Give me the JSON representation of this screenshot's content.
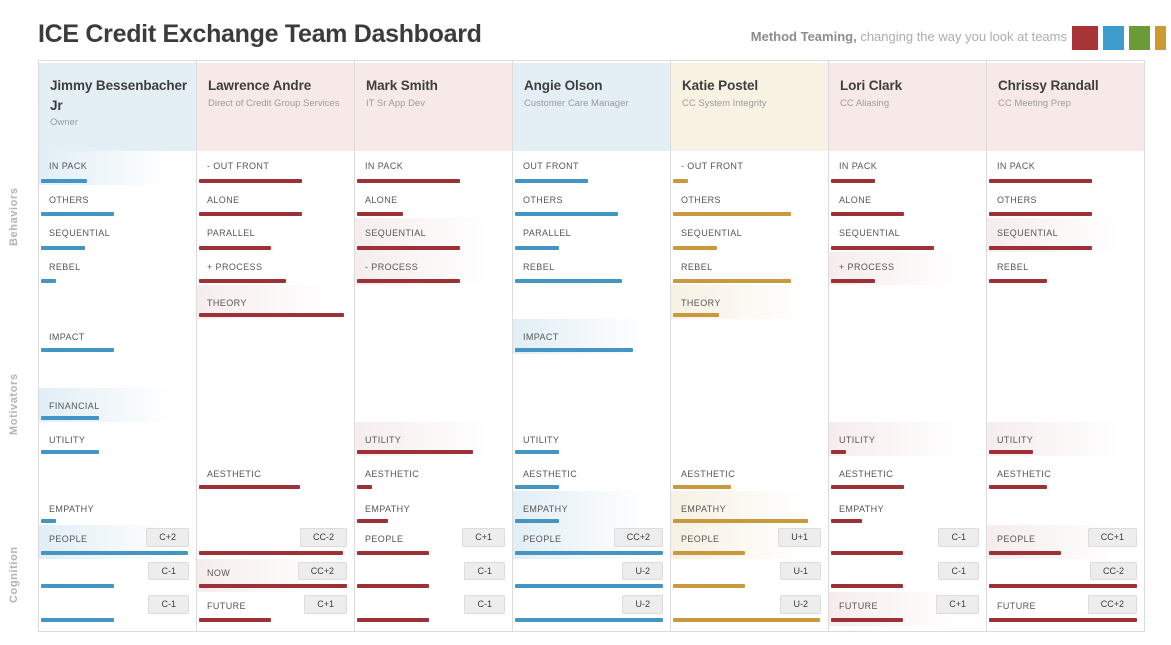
{
  "header": {
    "title": "ICE Credit Exchange Team Dashboard",
    "tagline_bold": "Method Teaming,",
    "tagline_rest": " changing the way you look at teams",
    "logo_colors": [
      "#a93438",
      "#3d9ccb",
      "#6b9b37",
      "#cc9933"
    ]
  },
  "sections": {
    "behaviors": "Behaviors",
    "motivators": "Motivators",
    "cognition": "Cognition"
  },
  "motivator_slots": [
    "THEORY",
    "IMPACT",
    "",
    "FINANCIAL",
    "UTILITY",
    "AESTHETIC",
    "EMPATHY"
  ],
  "colors": {
    "bar": {
      "blue": "#4494c4",
      "red": "#9d3138",
      "gold": "#c9993d"
    },
    "header": {
      "blue": "#e4eef5",
      "red": "#f7e9e8",
      "gold": "#f8f2e2"
    },
    "tint": {
      "blue": "rgba(70,150,196,0.16)",
      "red": "rgba(158,48,57,0.09)",
      "gold": "rgba(201,153,58,0.14)"
    }
  },
  "people": [
    {
      "name": "Jimmy Bessenbacher Jr",
      "role": "Owner",
      "theme": "blue",
      "behaviors": [
        {
          "label": "IN PACK",
          "pct": 30,
          "hl": true
        },
        {
          "label": "OTHERS",
          "pct": 48,
          "hl": false
        },
        {
          "label": "SEQUENTIAL",
          "pct": 29,
          "hl": false
        },
        {
          "label": "REBEL",
          "pct": 10,
          "hl": false
        }
      ],
      "motivators": [
        {
          "slot": 1,
          "label": "IMPACT",
          "pct": 48,
          "hl": false
        },
        {
          "slot": 3,
          "label": "FINANCIAL",
          "pct": 38,
          "hl": true
        },
        {
          "slot": 4,
          "label": "UTILITY",
          "pct": 38,
          "hl": false
        },
        {
          "slot": 6,
          "label": "EMPATHY",
          "pct": 10,
          "hl": false
        }
      ],
      "cognition": [
        {
          "label": "PEOPLE",
          "badge": "C+2",
          "pct": 96,
          "hl": true
        },
        {
          "label": "",
          "badge": "C-1",
          "pct": 48,
          "hl": false
        },
        {
          "label": "",
          "badge": "C-1",
          "pct": 48,
          "hl": false
        }
      ]
    },
    {
      "name": "Lawrence Andre",
      "role": "Direct of Credit Group Services",
      "theme": "red",
      "behaviors": [
        {
          "label": "- OUT FRONT",
          "pct": 67,
          "hl": false
        },
        {
          "label": "ALONE",
          "pct": 67,
          "hl": false
        },
        {
          "label": "PARALLEL",
          "pct": 47,
          "hl": false
        },
        {
          "label": "+ PROCESS",
          "pct": 57,
          "hl": false
        }
      ],
      "motivators": [
        {
          "slot": 0,
          "label": "THEORY",
          "pct": 95,
          "hl": true
        },
        {
          "slot": 5,
          "label": "AESTHETIC",
          "pct": 66,
          "hl": false
        }
      ],
      "cognition": [
        {
          "label": "",
          "badge": "CC-2",
          "pct": 94,
          "hl": false
        },
        {
          "label": "NOW",
          "badge": "CC+2",
          "pct": 97,
          "hl": true
        },
        {
          "label": "FUTURE",
          "badge": "C+1",
          "pct": 47,
          "hl": false
        }
      ]
    },
    {
      "name": "Mark Smith",
      "role": "IT Sr App Dev",
      "theme": "red",
      "behaviors": [
        {
          "label": "IN PACK",
          "pct": 67,
          "hl": false
        },
        {
          "label": "ALONE",
          "pct": 30,
          "hl": false
        },
        {
          "label": "SEQUENTIAL",
          "pct": 67,
          "hl": true
        },
        {
          "label": "- PROCESS",
          "pct": 67,
          "hl": true
        }
      ],
      "motivators": [
        {
          "slot": 4,
          "label": "UTILITY",
          "pct": 76,
          "hl": true
        },
        {
          "slot": 5,
          "label": "AESTHETIC",
          "pct": 10,
          "hl": false
        },
        {
          "slot": 6,
          "label": "EMPATHY",
          "pct": 20,
          "hl": false
        }
      ],
      "cognition": [
        {
          "label": "PEOPLE",
          "badge": "C+1",
          "pct": 47,
          "hl": false
        },
        {
          "label": "",
          "badge": "C-1",
          "pct": 47,
          "hl": false
        },
        {
          "label": "",
          "badge": "C-1",
          "pct": 47,
          "hl": false
        }
      ]
    },
    {
      "name": "Angie Olson",
      "role": "Customer Care Manager",
      "theme": "blue",
      "behaviors": [
        {
          "label": "OUT FRONT",
          "pct": 48,
          "hl": false
        },
        {
          "label": "OTHERS",
          "pct": 67,
          "hl": false
        },
        {
          "label": "PARALLEL",
          "pct": 29,
          "hl": false
        },
        {
          "label": "REBEL",
          "pct": 70,
          "hl": false
        }
      ],
      "motivators": [
        {
          "slot": 1,
          "label": "IMPACT",
          "pct": 77,
          "hl": true
        },
        {
          "slot": 4,
          "label": "UTILITY",
          "pct": 29,
          "hl": false
        },
        {
          "slot": 5,
          "label": "AESTHETIC",
          "pct": 29,
          "hl": false
        },
        {
          "slot": 6,
          "label": "EMPATHY",
          "pct": 29,
          "hl": true
        }
      ],
      "cognition": [
        {
          "label": "PEOPLE",
          "badge": "CC+2",
          "pct": 97,
          "hl": true
        },
        {
          "label": "",
          "badge": "U-2",
          "pct": 97,
          "hl": false
        },
        {
          "label": "",
          "badge": "U-2",
          "pct": 97,
          "hl": false
        }
      ]
    },
    {
      "name": "Katie Postel",
      "role": "CC System Integrity",
      "theme": "gold",
      "behaviors": [
        {
          "label": "- OUT FRONT",
          "pct": 10,
          "hl": false
        },
        {
          "label": "OTHERS",
          "pct": 77,
          "hl": false
        },
        {
          "label": "SEQUENTIAL",
          "pct": 29,
          "hl": false
        },
        {
          "label": "REBEL",
          "pct": 77,
          "hl": false
        }
      ],
      "motivators": [
        {
          "slot": 0,
          "label": "THEORY",
          "pct": 30,
          "hl": true
        },
        {
          "slot": 5,
          "label": "AESTHETIC",
          "pct": 38,
          "hl": false
        },
        {
          "slot": 6,
          "label": "EMPATHY",
          "pct": 88,
          "hl": true
        }
      ],
      "cognition": [
        {
          "label": "PEOPLE",
          "badge": "U+1",
          "pct": 47,
          "hl": true
        },
        {
          "label": "",
          "badge": "U-1",
          "pct": 47,
          "hl": false
        },
        {
          "label": "",
          "badge": "U-2",
          "pct": 96,
          "hl": false
        }
      ]
    },
    {
      "name": "Lori Clark",
      "role": "CC Aliasing",
      "theme": "red",
      "behaviors": [
        {
          "label": "IN PACK",
          "pct": 29,
          "hl": false
        },
        {
          "label": "ALONE",
          "pct": 48,
          "hl": false
        },
        {
          "label": "SEQUENTIAL",
          "pct": 67,
          "hl": false
        },
        {
          "label": "+ PROCESS",
          "pct": 29,
          "hl": true
        }
      ],
      "motivators": [
        {
          "slot": 4,
          "label": "UTILITY",
          "pct": 10,
          "hl": true
        },
        {
          "slot": 5,
          "label": "AESTHETIC",
          "pct": 48,
          "hl": false
        },
        {
          "slot": 6,
          "label": "EMPATHY",
          "pct": 20,
          "hl": false
        }
      ],
      "cognition": [
        {
          "label": "",
          "badge": "C-1",
          "pct": 47,
          "hl": false
        },
        {
          "label": "",
          "badge": "C-1",
          "pct": 47,
          "hl": false
        },
        {
          "label": "FUTURE",
          "badge": "C+1",
          "pct": 47,
          "hl": true
        }
      ]
    },
    {
      "name": "Chrissy Randall",
      "role": "CC Meeting Prep",
      "theme": "red",
      "behaviors": [
        {
          "label": "IN PACK",
          "pct": 67,
          "hl": false
        },
        {
          "label": "OTHERS",
          "pct": 67,
          "hl": false
        },
        {
          "label": "SEQUENTIAL",
          "pct": 67,
          "hl": true
        },
        {
          "label": "REBEL",
          "pct": 38,
          "hl": false
        }
      ],
      "motivators": [
        {
          "slot": 4,
          "label": "UTILITY",
          "pct": 29,
          "hl": true
        },
        {
          "slot": 5,
          "label": "AESTHETIC",
          "pct": 38,
          "hl": false
        }
      ],
      "cognition": [
        {
          "label": "PEOPLE",
          "badge": "CC+1",
          "pct": 47,
          "hl": true
        },
        {
          "label": "",
          "badge": "CC-2",
          "pct": 97,
          "hl": false
        },
        {
          "label": "FUTURE",
          "badge": "CC+2",
          "pct": 97,
          "hl": false
        }
      ]
    }
  ]
}
